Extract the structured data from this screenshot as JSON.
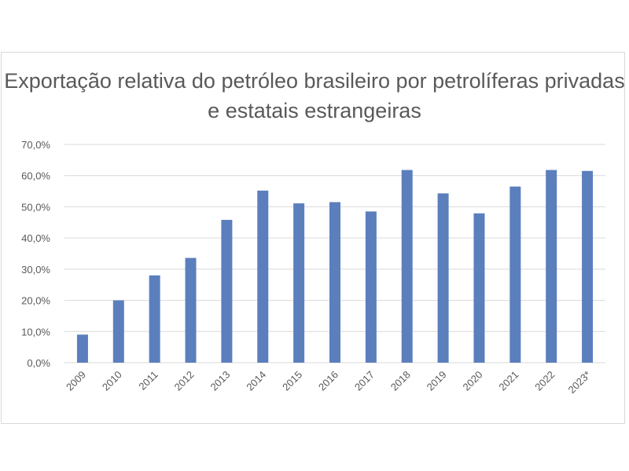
{
  "chart_data": {
    "type": "bar",
    "title": "Exportação relativa do petróleo brasileiro por petrolíferas privadas e estatais estrangeiras",
    "categories": [
      "2009",
      "2010",
      "2011",
      "2012",
      "2013",
      "2014",
      "2015",
      "2016",
      "2017",
      "2018",
      "2019",
      "2020",
      "2021",
      "2022",
      "2023*"
    ],
    "values": [
      9.0,
      20.0,
      28.0,
      33.6,
      45.8,
      55.2,
      51.1,
      51.5,
      48.5,
      61.8,
      54.3,
      47.9,
      56.5,
      61.8,
      61.5
    ],
    "ylim": [
      0,
      70
    ],
    "yticks": [
      "0,0%",
      "10,0%",
      "20,0%",
      "30,0%",
      "40,0%",
      "50,0%",
      "60,0%",
      "70,0%"
    ],
    "ytick_values": [
      0,
      10,
      20,
      30,
      40,
      50,
      60,
      70
    ],
    "grid": true,
    "legend": "none",
    "bar_color": "#5b7fbd",
    "grid_color": "#d9d9d9"
  }
}
